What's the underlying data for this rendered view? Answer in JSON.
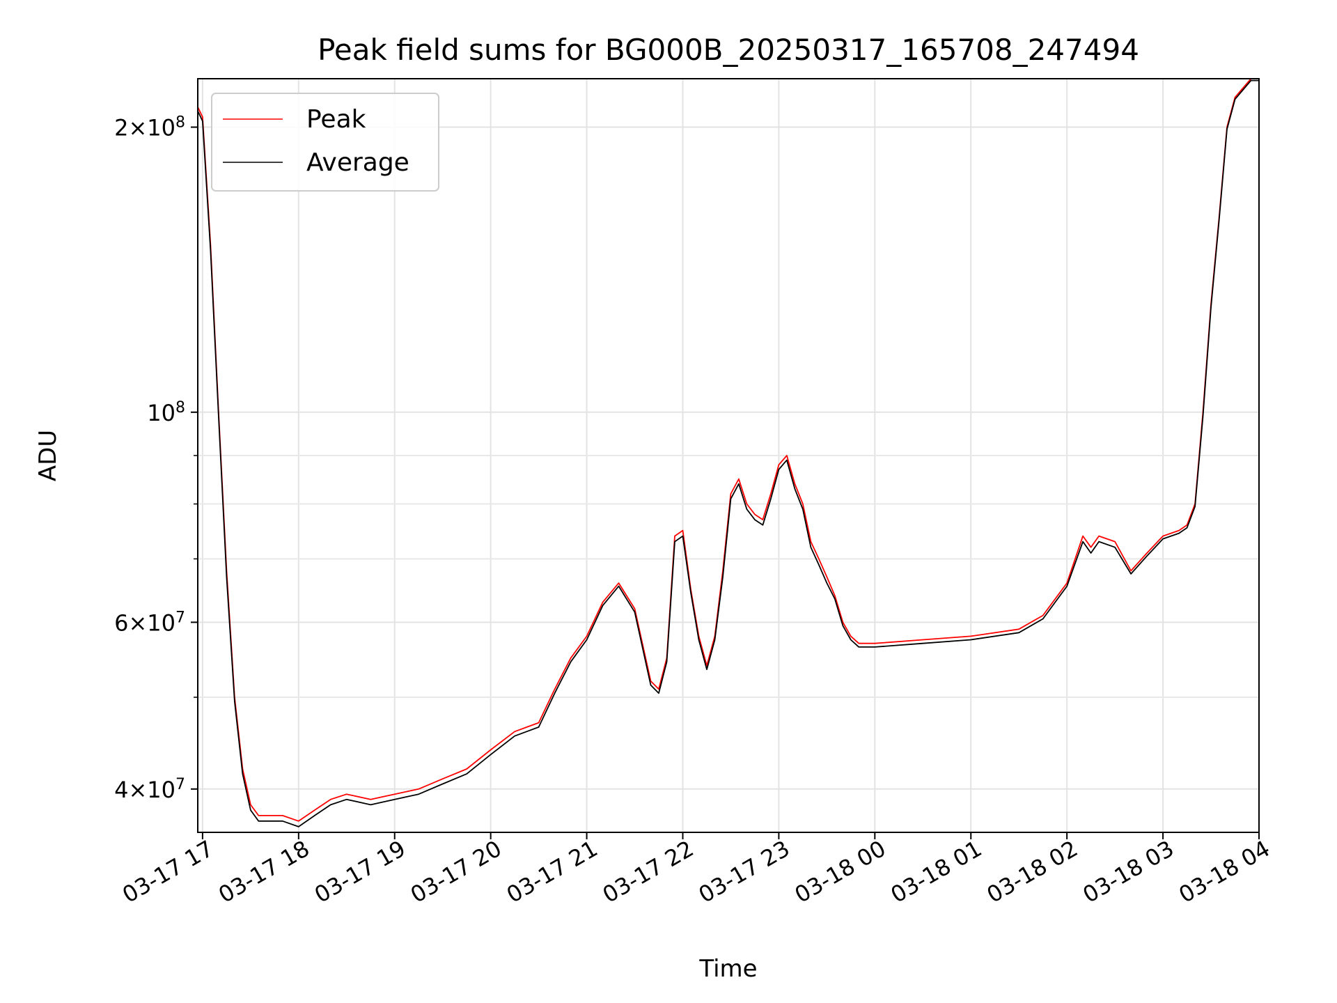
{
  "chart_data": {
    "type": "line",
    "title": "Peak field sums for BG000B_20250317_165708_247494",
    "xlabel": "Time",
    "ylabel": "ADU",
    "x_scale": "time",
    "y_scale": "log",
    "xlim": [
      "03-17 16:57",
      "03-18 04:00"
    ],
    "ylim": [
      36000000,
      225000000
    ],
    "x_ticks": [
      "03-17 17",
      "03-17 18",
      "03-17 19",
      "03-17 20",
      "03-17 21",
      "03-17 22",
      "03-17 23",
      "03-18 00",
      "03-18 01",
      "03-18 02",
      "03-18 03",
      "03-18 04"
    ],
    "y_ticks": [
      {
        "value": 40000000,
        "mantissa": "4",
        "exponent": "7"
      },
      {
        "value": 60000000,
        "mantissa": "6",
        "exponent": "7"
      },
      {
        "value": 100000000,
        "mantissa": "",
        "exponent": "8"
      },
      {
        "value": 200000000,
        "mantissa": "2",
        "exponent": "8"
      }
    ],
    "grid": true,
    "legend_position": "upper-left",
    "series": [
      {
        "name": "Peak",
        "color": "#ff0000",
        "x": [
          "03-17 16:57",
          "03-17 17:00",
          "03-17 17:05",
          "03-17 17:10",
          "03-17 17:15",
          "03-17 17:20",
          "03-17 17:25",
          "03-17 17:30",
          "03-17 17:35",
          "03-17 17:40",
          "03-17 17:50",
          "03-17 18:00",
          "03-17 18:10",
          "03-17 18:20",
          "03-17 18:30",
          "03-17 18:45",
          "03-17 19:00",
          "03-17 19:15",
          "03-17 19:30",
          "03-17 19:45",
          "03-17 20:00",
          "03-17 20:15",
          "03-17 20:30",
          "03-17 20:40",
          "03-17 20:50",
          "03-17 21:00",
          "03-17 21:10",
          "03-17 21:20",
          "03-17 21:30",
          "03-17 21:40",
          "03-17 21:45",
          "03-17 21:50",
          "03-17 21:55",
          "03-17 22:00",
          "03-17 22:05",
          "03-17 22:10",
          "03-17 22:15",
          "03-17 22:20",
          "03-17 22:25",
          "03-17 22:30",
          "03-17 22:35",
          "03-17 22:40",
          "03-17 22:45",
          "03-17 22:50",
          "03-17 22:55",
          "03-17 23:00",
          "03-17 23:05",
          "03-17 23:10",
          "03-17 23:15",
          "03-17 23:20",
          "03-17 23:25",
          "03-17 23:30",
          "03-17 23:35",
          "03-17 23:40",
          "03-17 23:45",
          "03-17 23:50",
          "03-17 23:55",
          "03-18 00:00",
          "03-18 00:30",
          "03-18 01:00",
          "03-18 01:30",
          "03-18 01:45",
          "03-18 02:00",
          "03-18 02:10",
          "03-18 02:15",
          "03-18 02:20",
          "03-18 02:30",
          "03-18 02:40",
          "03-18 02:50",
          "03-18 03:00",
          "03-18 03:10",
          "03-18 03:15",
          "03-18 03:20",
          "03-18 03:25",
          "03-18 03:30",
          "03-18 03:35",
          "03-18 03:40",
          "03-18 03:45",
          "03-18 03:50",
          "03-18 03:55",
          "03-18 04:00"
        ],
        "y": [
          210000000,
          205000000,
          150000000,
          100000000,
          68000000,
          50000000,
          42000000,
          38500000,
          37500000,
          37500000,
          37500000,
          37000000,
          38000000,
          39000000,
          39500000,
          39000000,
          39500000,
          40000000,
          41000000,
          42000000,
          44000000,
          46000000,
          47000000,
          51000000,
          55000000,
          58000000,
          63000000,
          66000000,
          62000000,
          52000000,
          51000000,
          55000000,
          74000000,
          75000000,
          65000000,
          58000000,
          54000000,
          58000000,
          68000000,
          82000000,
          85000000,
          80000000,
          78000000,
          77000000,
          82000000,
          88000000,
          90000000,
          84000000,
          80000000,
          73000000,
          70000000,
          67000000,
          64000000,
          60000000,
          58000000,
          57000000,
          57000000,
          57000000,
          57500000,
          58000000,
          59000000,
          61000000,
          66000000,
          74000000,
          72000000,
          74000000,
          73000000,
          68000000,
          71000000,
          74000000,
          75000000,
          76000000,
          80000000,
          100000000,
          130000000,
          160000000,
          200000000,
          215000000,
          220000000,
          225000000,
          225000000
        ]
      },
      {
        "name": "Average",
        "color": "#000000",
        "x": [
          "03-17 16:57",
          "03-17 17:00",
          "03-17 17:05",
          "03-17 17:10",
          "03-17 17:15",
          "03-17 17:20",
          "03-17 17:25",
          "03-17 17:30",
          "03-17 17:35",
          "03-17 17:40",
          "03-17 17:50",
          "03-17 18:00",
          "03-17 18:10",
          "03-17 18:20",
          "03-17 18:30",
          "03-17 18:45",
          "03-17 19:00",
          "03-17 19:15",
          "03-17 19:30",
          "03-17 19:45",
          "03-17 20:00",
          "03-17 20:15",
          "03-17 20:30",
          "03-17 20:40",
          "03-17 20:50",
          "03-17 21:00",
          "03-17 21:10",
          "03-17 21:20",
          "03-17 21:30",
          "03-17 21:40",
          "03-17 21:45",
          "03-17 21:50",
          "03-17 21:55",
          "03-17 22:00",
          "03-17 22:05",
          "03-17 22:10",
          "03-17 22:15",
          "03-17 22:20",
          "03-17 22:25",
          "03-17 22:30",
          "03-17 22:35",
          "03-17 22:40",
          "03-17 22:45",
          "03-17 22:50",
          "03-17 22:55",
          "03-17 23:00",
          "03-17 23:05",
          "03-17 23:10",
          "03-17 23:15",
          "03-17 23:20",
          "03-17 23:25",
          "03-17 23:30",
          "03-17 23:35",
          "03-17 23:40",
          "03-17 23:45",
          "03-17 23:50",
          "03-17 23:55",
          "03-18 00:00",
          "03-18 00:30",
          "03-18 01:00",
          "03-18 01:30",
          "03-18 01:45",
          "03-18 02:00",
          "03-18 02:10",
          "03-18 02:15",
          "03-18 02:20",
          "03-18 02:30",
          "03-18 02:40",
          "03-18 02:50",
          "03-18 03:00",
          "03-18 03:10",
          "03-18 03:15",
          "03-18 03:20",
          "03-18 03:25",
          "03-18 03:30",
          "03-18 03:35",
          "03-18 03:40",
          "03-18 03:45",
          "03-18 03:50",
          "03-18 03:55",
          "03-18 04:00"
        ],
        "y": [
          208000000,
          203000000,
          148000000,
          99000000,
          67000000,
          49500000,
          41500000,
          38000000,
          37000000,
          37000000,
          37000000,
          36500000,
          37500000,
          38500000,
          39000000,
          38500000,
          39000000,
          39500000,
          40500000,
          41500000,
          43500000,
          45500000,
          46500000,
          50500000,
          54500000,
          57500000,
          62500000,
          65500000,
          61500000,
          51500000,
          50500000,
          54500000,
          73000000,
          74000000,
          64500000,
          57500000,
          53500000,
          57500000,
          67000000,
          81000000,
          84000000,
          79000000,
          77000000,
          76000000,
          81000000,
          87000000,
          89000000,
          83000000,
          79000000,
          72000000,
          69000000,
          66000000,
          63500000,
          59500000,
          57500000,
          56500000,
          56500000,
          56500000,
          57000000,
          57500000,
          58500000,
          60500000,
          65500000,
          73000000,
          71000000,
          73000000,
          72000000,
          67500000,
          70500000,
          73500000,
          74500000,
          75500000,
          79500000,
          99000000,
          129000000,
          159000000,
          199000000,
          214000000,
          219000000,
          224000000,
          224000000
        ]
      }
    ]
  }
}
